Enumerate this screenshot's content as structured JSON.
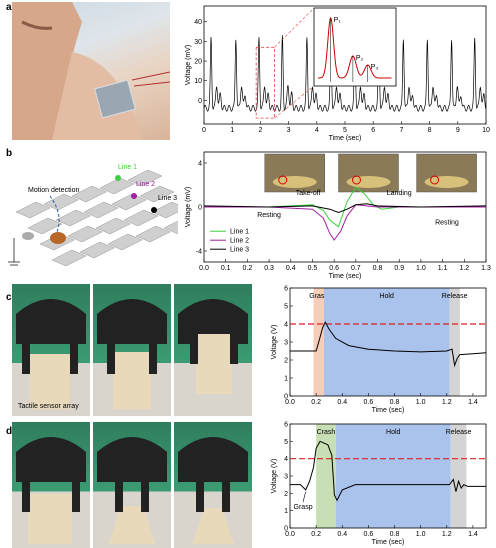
{
  "panels": {
    "a": "a",
    "b": "b",
    "c": "c",
    "d": "d"
  },
  "panel_a": {
    "chart_data": {
      "type": "line",
      "xlabel": "Time (sec)",
      "ylabel": "Voltage (mV)",
      "xlim": [
        0,
        10
      ],
      "ylim": [
        -12,
        48
      ],
      "xticks": [
        "0",
        "1",
        "2",
        "3",
        "4",
        "5",
        "6",
        "7",
        "8",
        "9",
        "10"
      ],
      "yticks": [
        "0",
        "10",
        "20",
        "30",
        "40"
      ],
      "beat_times": [
        0.25,
        1.13,
        1.95,
        2.78,
        3.65,
        4.5,
        5.35,
        6.2,
        7.07,
        7.92,
        8.78,
        9.6
      ],
      "peak_amplitude": 36,
      "annotations": [
        "P₁",
        "P₂",
        "P₃"
      ]
    }
  },
  "panel_b": {
    "diagram": {
      "motion_label": "Motion detection",
      "lines": [
        "Line 1",
        "Line 2",
        "Line 3"
      ],
      "line_colors": [
        "#3cd13c",
        "#a020a0",
        "#000000"
      ]
    },
    "chart_data": {
      "type": "line",
      "xlabel": "Time (sec)",
      "ylabel": "Voltage (mV)",
      "xlim": [
        0,
        1.3
      ],
      "ylim": [
        -5,
        5
      ],
      "xticks": [
        "0.0",
        "0.1",
        "0.2",
        "0.3",
        "0.4",
        "0.5",
        "0.6",
        "0.7",
        "0.8",
        "0.9",
        "1.0",
        "1.1",
        "1.2",
        "1.3"
      ],
      "yticks": [
        "-4",
        "0",
        "4"
      ],
      "series": [
        {
          "name": "Line 1",
          "color": "#3cd13c",
          "x": [
            0,
            0.3,
            0.5,
            0.55,
            0.58,
            0.62,
            0.66,
            0.7,
            0.74,
            0.78,
            0.82,
            0.9,
            1.0,
            1.3
          ],
          "y": [
            0,
            0,
            0.2,
            -0.3,
            -1.2,
            -1.8,
            0.5,
            1.8,
            1.2,
            0.2,
            -0.2,
            0,
            0,
            0
          ]
        },
        {
          "name": "Line 2",
          "color": "#a020a0",
          "x": [
            0,
            0.3,
            0.5,
            0.55,
            0.58,
            0.6,
            0.63,
            0.66,
            0.7,
            0.75,
            0.8,
            1.0,
            1.3
          ],
          "y": [
            0,
            0,
            -0.2,
            -1.0,
            -2.4,
            -3.0,
            -2.2,
            -0.8,
            0.2,
            0.1,
            0,
            0,
            0
          ]
        },
        {
          "name": "Line 3",
          "color": "#000000",
          "x": [
            0,
            0.3,
            0.5,
            0.58,
            0.62,
            0.66,
            0.7,
            0.75,
            0.8,
            1.0,
            1.3
          ],
          "y": [
            0.1,
            0,
            0.1,
            -0.2,
            -0.5,
            -0.2,
            0.2,
            0.3,
            0.1,
            0,
            0.1
          ]
        }
      ],
      "annotations": [
        "Take-off",
        "Landing",
        "Resting",
        "Resting"
      ]
    }
  },
  "panel_c": {
    "photo_caption": "Tactile sensor array",
    "chart_data": {
      "type": "line",
      "xlabel": "Time (sec)",
      "ylabel": "Voltage (V)",
      "xlim": [
        0,
        1.5
      ],
      "ylim": [
        0,
        6
      ],
      "xticks": [
        "0.0",
        "0.2",
        "0.4",
        "0.6",
        "0.8",
        "1.0",
        "1.2",
        "1.4"
      ],
      "yticks": [
        "0",
        "1",
        "2",
        "3",
        "4",
        "5",
        "6"
      ],
      "threshold": 4,
      "phases": [
        {
          "label": "Grasp",
          "x": [
            0.18,
            0.26
          ],
          "color": "#f6cdb8"
        },
        {
          "label": "Hold",
          "x": [
            0.26,
            1.22
          ],
          "color": "#a9c3ec"
        },
        {
          "label": "Release",
          "x": [
            1.22,
            1.3
          ],
          "color": "#d4d4d4"
        }
      ],
      "x": [
        0,
        0.1,
        0.2,
        0.22,
        0.25,
        0.27,
        0.3,
        0.35,
        0.45,
        0.6,
        0.8,
        1.0,
        1.2,
        1.24,
        1.26,
        1.28,
        1.3,
        1.4,
        1.5
      ],
      "y": [
        2.5,
        2.5,
        2.5,
        3.0,
        3.8,
        4.1,
        3.7,
        3.2,
        2.8,
        2.6,
        2.5,
        2.45,
        2.5,
        2.6,
        1.7,
        2.1,
        2.3,
        2.35,
        2.4
      ]
    }
  },
  "panel_d": {
    "chart_data": {
      "type": "line",
      "xlabel": "Time (sec)",
      "ylabel": "Voltage (V)",
      "xlim": [
        0,
        1.5
      ],
      "ylim": [
        0,
        6
      ],
      "xticks": [
        "0.0",
        "0.2",
        "0.4",
        "0.6",
        "0.8",
        "1.0",
        "1.2",
        "1.4"
      ],
      "yticks": [
        "0",
        "1",
        "2",
        "3",
        "4",
        "5",
        "6"
      ],
      "threshold": 4,
      "phases": [
        {
          "label": "Crash",
          "x": [
            0.2,
            0.35
          ],
          "color": "#c8dfb5"
        },
        {
          "label": "Hold",
          "x": [
            0.35,
            1.23
          ],
          "color": "#a9c3ec"
        },
        {
          "label": "Release",
          "x": [
            1.23,
            1.35
          ],
          "color": "#d4d4d4"
        }
      ],
      "grasp_label": "Grasp",
      "x": [
        0,
        0.08,
        0.12,
        0.15,
        0.18,
        0.2,
        0.23,
        0.26,
        0.29,
        0.32,
        0.34,
        0.36,
        0.4,
        0.5,
        0.7,
        1.0,
        1.22,
        1.25,
        1.27,
        1.29,
        1.31,
        1.33,
        1.36,
        1.5
      ],
      "y": [
        2.5,
        2.5,
        2.2,
        2.7,
        3.5,
        4.6,
        5.0,
        4.9,
        4.8,
        4.2,
        1.9,
        1.6,
        2.2,
        2.5,
        2.5,
        2.5,
        2.5,
        2.8,
        2.1,
        2.7,
        2.3,
        2.5,
        2.4,
        2.4
      ]
    }
  }
}
